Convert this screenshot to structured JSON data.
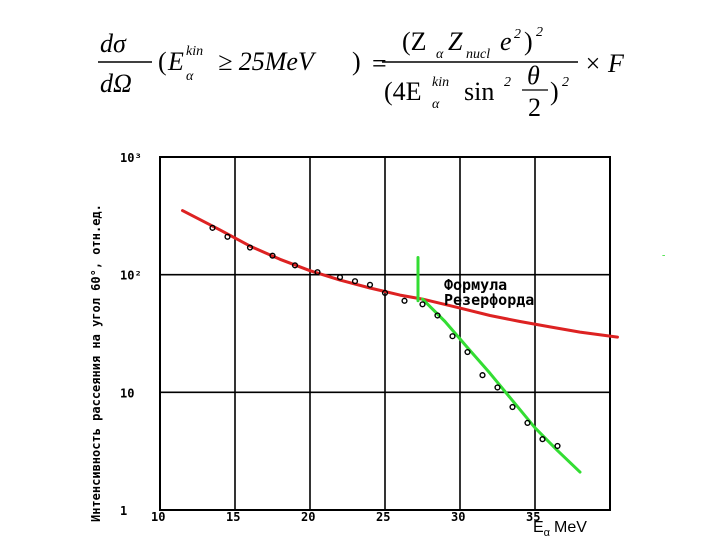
{
  "formula": {
    "lhs_num": "dσ",
    "lhs_den": "dΩ",
    "paren_E": "E",
    "paren_E_sup": "kin",
    "paren_E_sub": "α",
    "condition": "≥ 25MeV",
    "rhs_num_open": "(Z",
    "rhs_num_zsub": "α",
    "rhs_num_Z": "Z",
    "rhs_num_nuclsub": "nucl",
    "rhs_num_e": "e",
    "rhs_num_exp": "2",
    "rhs_num_close": ")",
    "rhs_num_outexp": "2",
    "rhs_den_open": "(4E",
    "rhs_den_sup": "kin",
    "rhs_den_sub": "α",
    "rhs_den_sin": "sin",
    "rhs_den_sin_exp": "2",
    "rhs_den_theta": "θ",
    "rhs_den_two": "2",
    "rhs_den_close": ")",
    "rhs_den_outexp": "2",
    "times": "× F"
  },
  "chart_data": {
    "type": "line",
    "xlabel": "E",
    "xlabel_sub": "α",
    "xlabel_unit": "MeV",
    "ylabel": "Интенсивность рассеяния на угол 60°, отн.ед.",
    "xlim": [
      10,
      40
    ],
    "ylim": [
      1,
      1000
    ],
    "yscale": "log",
    "grid": true,
    "x_ticks": [
      "10",
      "15",
      "20",
      "25",
      "30",
      "35"
    ],
    "y_ticks": [
      {
        "value": 1000,
        "label": "10³"
      },
      {
        "value": 100,
        "label": "10²"
      },
      {
        "value": 10,
        "label": "10"
      },
      {
        "value": 1,
        "label": "1"
      }
    ],
    "annotation": [
      "Формула",
      "Резерфорда"
    ],
    "series": [
      {
        "color": "#dd2222",
        "x": [
          11.5,
          14,
          16,
          18,
          20,
          22,
          24,
          26,
          27.5,
          30,
          32,
          34,
          36,
          38,
          40.5
        ],
        "y": [
          350,
          240,
          175,
          135,
          108,
          90,
          77,
          67,
          62,
          52,
          45,
          40,
          36,
          32.5,
          29.5
        ]
      },
      {
        "color": "#33dd33",
        "x": [
          27.5,
          29,
          30.5,
          32,
          33.5,
          35,
          36.5,
          38
        ],
        "y": [
          62,
          40,
          24,
          14.5,
          8.5,
          5,
          3.2,
          2.1
        ]
      },
      {
        "color": "#33dd33",
        "x": [
          27.2,
          27.2
        ],
        "y": [
          140,
          60
        ]
      },
      {
        "color": "#000000",
        "x": [
          13.5,
          14.5,
          16,
          17.5,
          19,
          20.5,
          22,
          23,
          24,
          25,
          26.3,
          27.5,
          28.5,
          29.5,
          30.5,
          31.5,
          32.5,
          33.5,
          34.5,
          35.5,
          36.5
        ],
        "y": [
          250,
          210,
          170,
          145,
          120,
          105,
          95,
          88,
          82,
          70,
          60,
          56,
          45,
          30,
          22,
          14,
          11,
          7.5,
          5.5,
          4,
          3.5
        ]
      }
    ]
  }
}
